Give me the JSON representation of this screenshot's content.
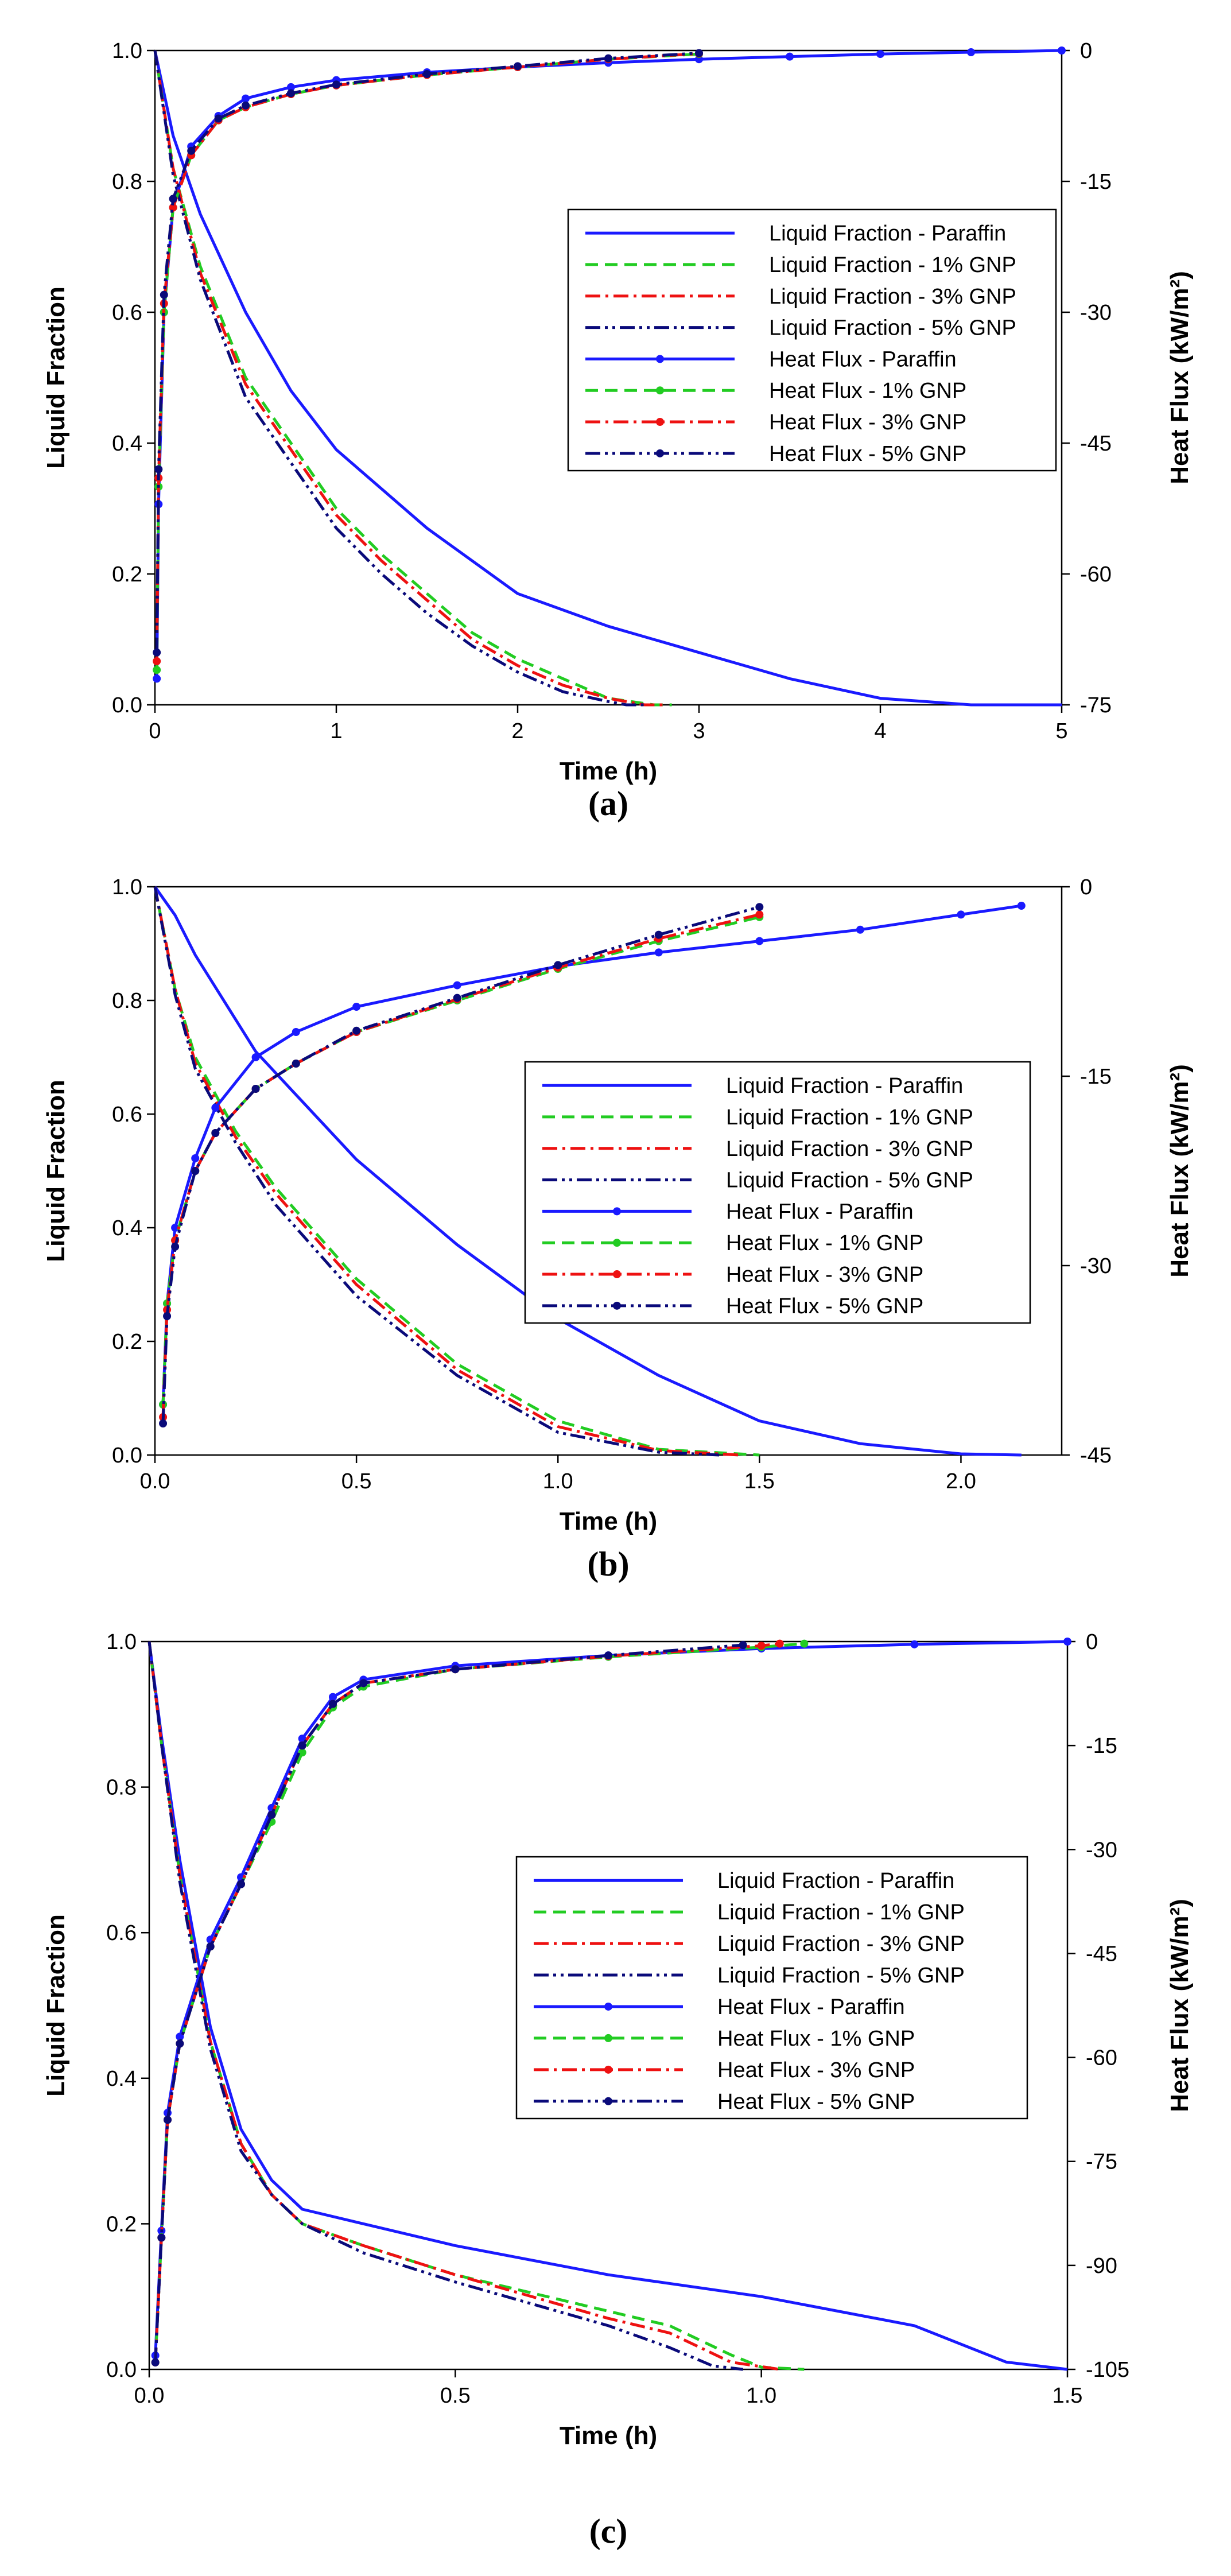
{
  "figure": {
    "captions": [
      "(a)",
      "(b)",
      "(c)"
    ]
  },
  "legend_styles": [
    {
      "color": "#1a1aff",
      "dash": "",
      "marker": false,
      "width": 5
    },
    {
      "color": "#22cc22",
      "dash": "22,12",
      "marker": false,
      "width": 5
    },
    {
      "color": "#ee1111",
      "dash": "26,9,5,9",
      "marker": false,
      "width": 5
    },
    {
      "color": "#0a0a7a",
      "dash": "26,8,5,8,5,8",
      "marker": false,
      "width": 5
    },
    {
      "color": "#1a1aff",
      "dash": "",
      "marker": true,
      "width": 5
    },
    {
      "color": "#22cc22",
      "dash": "22,12",
      "marker": true,
      "width": 5
    },
    {
      "color": "#ee1111",
      "dash": "26,9,5,9",
      "marker": true,
      "width": 5
    },
    {
      "color": "#0a0a7a",
      "dash": "26,8,5,8,5,8",
      "marker": true,
      "width": 5
    }
  ],
  "chart_data": [
    {
      "type": "line",
      "panel": "(a)",
      "xlabel": "Time (h)",
      "ylabel": "Liquid Fraction",
      "y2label": "Heat Flux (kW/m²)",
      "xlim": [
        0,
        5
      ],
      "ylim": [
        0,
        1
      ],
      "y2lim": [
        -75,
        0
      ],
      "xticks": [
        "0",
        "1",
        "2",
        "3",
        "4",
        "5"
      ],
      "yticks": [
        "0.0",
        "0.2",
        "0.4",
        "0.6",
        "0.8",
        "1.0"
      ],
      "y2ticks": [
        "-75",
        "-60",
        "-45",
        "-30",
        "-15",
        "0"
      ],
      "legend_position": "upper-right",
      "legend": [
        "Liquid Fraction - Paraffin",
        "Liquid Fraction - 1% GNP",
        "Liquid Fraction - 3% GNP",
        "Liquid Fraction - 5% GNP",
        "Heat Flux - Paraffin",
        "Heat Flux - 1% GNP",
        "Heat Flux - 3% GNP",
        "Heat Flux - 5% GNP"
      ],
      "series": [
        {
          "name": "Liquid Fraction - Paraffin",
          "axis": "left",
          "x": [
            0,
            0.1,
            0.25,
            0.5,
            0.75,
            1.0,
            1.5,
            2.0,
            2.5,
            3.0,
            3.5,
            4.0,
            4.5,
            5.0
          ],
          "y": [
            1.0,
            0.87,
            0.75,
            0.6,
            0.48,
            0.39,
            0.27,
            0.17,
            0.12,
            0.08,
            0.04,
            0.01,
            0.0,
            0.0
          ]
        },
        {
          "name": "Liquid Fraction - 1% GNP",
          "axis": "left",
          "x": [
            0,
            0.1,
            0.25,
            0.5,
            0.75,
            1.0,
            1.25,
            1.5,
            1.75,
            2.0,
            2.25,
            2.5,
            2.75,
            2.85
          ],
          "y": [
            1.0,
            0.82,
            0.67,
            0.5,
            0.4,
            0.3,
            0.23,
            0.17,
            0.11,
            0.07,
            0.04,
            0.01,
            0.0,
            0.0
          ]
        },
        {
          "name": "Liquid Fraction - 3% GNP",
          "axis": "left",
          "x": [
            0,
            0.1,
            0.25,
            0.5,
            0.75,
            1.0,
            1.25,
            1.5,
            1.75,
            2.0,
            2.25,
            2.5,
            2.7,
            2.8
          ],
          "y": [
            1.0,
            0.82,
            0.66,
            0.49,
            0.39,
            0.29,
            0.22,
            0.16,
            0.1,
            0.06,
            0.03,
            0.01,
            0.0,
            0.0
          ]
        },
        {
          "name": "Liquid Fraction - 5% GNP",
          "axis": "left",
          "x": [
            0,
            0.1,
            0.25,
            0.5,
            0.75,
            1.0,
            1.25,
            1.5,
            1.75,
            2.0,
            2.25,
            2.5,
            2.6,
            2.7
          ],
          "y": [
            1.0,
            0.81,
            0.65,
            0.47,
            0.37,
            0.27,
            0.2,
            0.14,
            0.09,
            0.05,
            0.02,
            0.005,
            0.0,
            0.0
          ]
        },
        {
          "name": "Heat Flux - Paraffin",
          "axis": "right",
          "x": [
            0.01,
            0.02,
            0.05,
            0.1,
            0.2,
            0.35,
            0.5,
            0.75,
            1.0,
            1.5,
            2.0,
            2.5,
            3.0,
            3.5,
            4.0,
            4.5,
            5.0
          ],
          "y": [
            -72,
            -52,
            -30,
            -18,
            -11,
            -7.5,
            -5.5,
            -4.2,
            -3.4,
            -2.5,
            -1.9,
            -1.4,
            -1.0,
            -0.7,
            -0.4,
            -0.2,
            0
          ]
        },
        {
          "name": "Heat Flux - 1% GNP",
          "axis": "right",
          "x": [
            0.01,
            0.02,
            0.05,
            0.1,
            0.2,
            0.35,
            0.5,
            0.75,
            1.0,
            1.5,
            2.0,
            2.5,
            3.0
          ],
          "y": [
            -71,
            -50,
            -30,
            -18,
            -12,
            -8,
            -6.5,
            -5,
            -4,
            -2.8,
            -1.9,
            -1.0,
            -0.4
          ]
        },
        {
          "name": "Heat Flux - 3% GNP",
          "axis": "right",
          "x": [
            0.01,
            0.02,
            0.05,
            0.1,
            0.2,
            0.35,
            0.5,
            0.75,
            1.0,
            1.5,
            2.0,
            2.5,
            3.0
          ],
          "y": [
            -70,
            -49,
            -29,
            -18,
            -12,
            -8,
            -6.5,
            -5,
            -4,
            -2.8,
            -1.9,
            -1.0,
            -0.35
          ]
        },
        {
          "name": "Heat Flux - 5% GNP",
          "axis": "right",
          "x": [
            0.01,
            0.02,
            0.05,
            0.1,
            0.2,
            0.35,
            0.5,
            0.75,
            1.0,
            1.5,
            2.0,
            2.5,
            3.0
          ],
          "y": [
            -69,
            -48,
            -28,
            -17,
            -11.5,
            -7.8,
            -6.3,
            -4.9,
            -3.9,
            -2.7,
            -1.8,
            -0.9,
            -0.3
          ]
        }
      ]
    },
    {
      "type": "line",
      "panel": "(b)",
      "xlabel": "Time (h)",
      "ylabel": "Liquid Fraction",
      "y2label": "Heat Flux (kW/m²)",
      "xlim": [
        0,
        2.25
      ],
      "ylim": [
        0,
        1
      ],
      "y2lim": [
        -45,
        0
      ],
      "xticks": [
        "0.0",
        "0.5",
        "1.0",
        "1.5",
        "2.0"
      ],
      "yticks": [
        "0.0",
        "0.2",
        "0.4",
        "0.6",
        "0.8",
        "1.0"
      ],
      "y2ticks": [
        "-45",
        "-30",
        "-15",
        "0"
      ],
      "legend_position": "center-right",
      "legend": [
        "Liquid Fraction - Paraffin",
        "Liquid Fraction - 1% GNP",
        "Liquid Fraction - 3% GNP",
        "Liquid Fraction - 5% GNP",
        "Heat Flux - Paraffin",
        "Heat Flux - 1% GNP",
        "Heat Flux - 3% GNP",
        "Heat Flux - 5% GNP"
      ],
      "series": [
        {
          "name": "Liquid Fraction - Paraffin",
          "axis": "left",
          "x": [
            0,
            0.05,
            0.1,
            0.25,
            0.5,
            0.75,
            1.0,
            1.25,
            1.5,
            1.75,
            2.0,
            2.15
          ],
          "y": [
            1.0,
            0.95,
            0.88,
            0.71,
            0.52,
            0.37,
            0.24,
            0.14,
            0.06,
            0.02,
            0.002,
            0.0
          ]
        },
        {
          "name": "Liquid Fraction - 1% GNP",
          "axis": "left",
          "x": [
            0,
            0.05,
            0.1,
            0.2,
            0.3,
            0.5,
            0.75,
            1.0,
            1.25,
            1.5
          ],
          "y": [
            1.0,
            0.82,
            0.7,
            0.57,
            0.47,
            0.31,
            0.16,
            0.06,
            0.01,
            0.0
          ]
        },
        {
          "name": "Liquid Fraction - 3% GNP",
          "axis": "left",
          "x": [
            0,
            0.05,
            0.1,
            0.2,
            0.3,
            0.5,
            0.75,
            1.0,
            1.25,
            1.45
          ],
          "y": [
            1.0,
            0.82,
            0.69,
            0.56,
            0.46,
            0.3,
            0.15,
            0.05,
            0.008,
            0.0
          ]
        },
        {
          "name": "Liquid Fraction - 5% GNP",
          "axis": "left",
          "x": [
            0,
            0.05,
            0.1,
            0.2,
            0.3,
            0.5,
            0.75,
            1.0,
            1.25,
            1.4
          ],
          "y": [
            1.0,
            0.81,
            0.68,
            0.55,
            0.44,
            0.28,
            0.14,
            0.04,
            0.005,
            0.0
          ]
        },
        {
          "name": "Heat Flux - Paraffin",
          "axis": "right",
          "x": [
            0.02,
            0.03,
            0.05,
            0.1,
            0.15,
            0.25,
            0.35,
            0.5,
            0.75,
            1.0,
            1.25,
            1.5,
            1.75,
            2.0,
            2.15
          ],
          "y": [
            -41,
            -33,
            -27,
            -21.5,
            -17.5,
            -13.5,
            -11.5,
            -9.5,
            -7.8,
            -6.3,
            -5.2,
            -4.3,
            -3.4,
            -2.2,
            -1.5
          ]
        },
        {
          "name": "Heat Flux - 1% GNP",
          "axis": "right",
          "x": [
            0.02,
            0.03,
            0.05,
            0.1,
            0.15,
            0.25,
            0.35,
            0.5,
            0.75,
            1.0,
            1.25,
            1.5
          ],
          "y": [
            -41,
            -33,
            -28,
            -22.5,
            -19.5,
            -16,
            -14,
            -11.5,
            -9,
            -6.5,
            -4.3,
            -2.4
          ]
        },
        {
          "name": "Heat Flux - 3% GNP",
          "axis": "right",
          "x": [
            0.02,
            0.03,
            0.05,
            0.1,
            0.15,
            0.25,
            0.35,
            0.5,
            0.75,
            1.0,
            1.25,
            1.5
          ],
          "y": [
            -42,
            -33.5,
            -28,
            -22.5,
            -19.5,
            -16,
            -14,
            -11.5,
            -8.9,
            -6.4,
            -4.1,
            -2.2
          ]
        },
        {
          "name": "Heat Flux - 5% GNP",
          "axis": "right",
          "x": [
            0.02,
            0.03,
            0.05,
            0.1,
            0.15,
            0.25,
            0.35,
            0.5,
            0.75,
            1.0,
            1.25,
            1.5
          ],
          "y": [
            -42.5,
            -34,
            -28.5,
            -22.5,
            -19.5,
            -16,
            -14,
            -11.4,
            -8.8,
            -6.2,
            -3.8,
            -1.6
          ]
        }
      ]
    },
    {
      "type": "line",
      "panel": "(c)",
      "xlabel": "Time (h)",
      "ylabel": "Liquid Fraction",
      "y2label": "Heat Flux (kW/m²)",
      "xlim": [
        0,
        1.5
      ],
      "ylim": [
        0,
        1
      ],
      "y2lim": [
        -105,
        0
      ],
      "xticks": [
        "0.0",
        "0.5",
        "1.0",
        "1.5"
      ],
      "yticks": [
        "0.0",
        "0.2",
        "0.4",
        "0.6",
        "0.8",
        "1.0"
      ],
      "y2ticks": [
        "-105",
        "-90",
        "-75",
        "-60",
        "-45",
        "-30",
        "-15",
        "0"
      ],
      "legend_position": "center-right",
      "legend": [
        "Liquid Fraction - Paraffin",
        "Liquid Fraction - 1% GNP",
        "Liquid Fraction - 3% GNP",
        "Liquid Fraction - 5% GNP",
        "Heat Flux - Paraffin",
        "Heat Flux - 1% GNP",
        "Heat Flux - 3% GNP",
        "Heat Flux - 5% GNP"
      ],
      "series": [
        {
          "name": "Liquid Fraction - Paraffin",
          "axis": "left",
          "x": [
            0,
            0.02,
            0.05,
            0.1,
            0.15,
            0.2,
            0.25,
            0.35,
            0.5,
            0.75,
            1.0,
            1.25,
            1.4,
            1.5
          ],
          "y": [
            1.0,
            0.87,
            0.7,
            0.47,
            0.33,
            0.26,
            0.22,
            0.2,
            0.17,
            0.13,
            0.1,
            0.06,
            0.01,
            0.0
          ]
        },
        {
          "name": "Liquid Fraction - 1% GNP",
          "axis": "left",
          "x": [
            0,
            0.02,
            0.05,
            0.1,
            0.15,
            0.2,
            0.25,
            0.35,
            0.5,
            0.75,
            0.85,
            0.95,
            1.0,
            1.07
          ],
          "y": [
            1.0,
            0.86,
            0.68,
            0.45,
            0.31,
            0.24,
            0.2,
            0.17,
            0.13,
            0.08,
            0.06,
            0.02,
            0.003,
            0.0
          ]
        },
        {
          "name": "Liquid Fraction - 3% GNP",
          "axis": "left",
          "x": [
            0,
            0.02,
            0.05,
            0.1,
            0.15,
            0.2,
            0.25,
            0.35,
            0.5,
            0.75,
            0.85,
            0.95,
            1.03
          ],
          "y": [
            1.0,
            0.86,
            0.68,
            0.45,
            0.31,
            0.24,
            0.2,
            0.17,
            0.13,
            0.07,
            0.05,
            0.01,
            0.0
          ]
        },
        {
          "name": "Liquid Fraction - 5% GNP",
          "axis": "left",
          "x": [
            0,
            0.02,
            0.05,
            0.1,
            0.15,
            0.2,
            0.25,
            0.35,
            0.5,
            0.75,
            0.85,
            0.92,
            0.97
          ],
          "y": [
            1.0,
            0.86,
            0.67,
            0.44,
            0.3,
            0.24,
            0.2,
            0.16,
            0.12,
            0.06,
            0.03,
            0.005,
            0.0
          ]
        },
        {
          "name": "Heat Flux - Paraffin",
          "axis": "right",
          "x": [
            0.01,
            0.02,
            0.03,
            0.05,
            0.1,
            0.15,
            0.2,
            0.25,
            0.3,
            0.35,
            0.5,
            0.75,
            1.0,
            1.25,
            1.5
          ],
          "y": [
            -103,
            -85,
            -68,
            -57,
            -43,
            -34,
            -24,
            -14,
            -8,
            -5.5,
            -3.5,
            -2.0,
            -1.0,
            -0.4,
            0
          ]
        },
        {
          "name": "Heat Flux - 1% GNP",
          "axis": "right",
          "x": [
            0.01,
            0.02,
            0.03,
            0.05,
            0.1,
            0.15,
            0.2,
            0.25,
            0.3,
            0.35,
            0.5,
            0.75,
            1.0,
            1.07
          ],
          "y": [
            -104,
            -86,
            -69,
            -58,
            -44,
            -35,
            -26,
            -16,
            -9.5,
            -6.5,
            -4,
            -2.2,
            -0.8,
            -0.3
          ]
        },
        {
          "name": "Heat Flux - 3% GNP",
          "axis": "right",
          "x": [
            0.01,
            0.02,
            0.03,
            0.05,
            0.1,
            0.15,
            0.2,
            0.25,
            0.3,
            0.35,
            0.5,
            0.75,
            1.0,
            1.03
          ],
          "y": [
            -104,
            -86,
            -69,
            -58,
            -44,
            -35,
            -25,
            -15,
            -9,
            -6,
            -4,
            -2.1,
            -0.6,
            -0.3
          ]
        },
        {
          "name": "Heat Flux - 5% GNP",
          "axis": "right",
          "x": [
            0.01,
            0.02,
            0.03,
            0.05,
            0.1,
            0.15,
            0.2,
            0.25,
            0.3,
            0.35,
            0.5,
            0.75,
            0.97
          ],
          "y": [
            -104,
            -86,
            -69,
            -58,
            -44,
            -35,
            -25,
            -15,
            -9,
            -6,
            -4,
            -2,
            -0.5
          ]
        }
      ]
    }
  ]
}
